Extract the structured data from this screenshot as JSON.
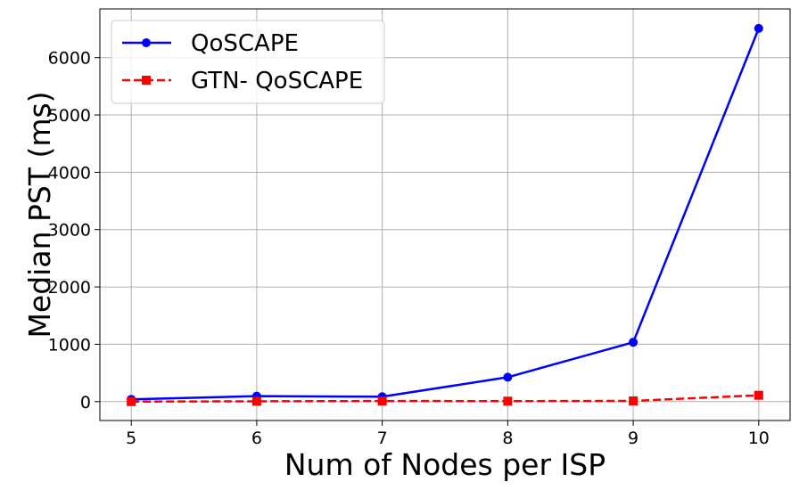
{
  "chart_data": {
    "type": "line",
    "title": "",
    "xlabel": "Num of Nodes per ISP",
    "ylabel": "Median PST (ms)",
    "x": [
      5,
      6,
      7,
      8,
      9,
      10
    ],
    "xlim": [
      4.75,
      10.25
    ],
    "ylim": [
      -330,
      6850
    ],
    "xticks": [
      5,
      6,
      7,
      8,
      9,
      10
    ],
    "yticks": [
      0,
      1000,
      2000,
      3000,
      4000,
      5000,
      6000
    ],
    "grid": true,
    "legend_position": "top-left",
    "series": [
      {
        "name": "QoSCAPE",
        "values": [
          40,
          95,
          85,
          425,
          1035,
          6510
        ],
        "color": "#0000ff",
        "marker": "circle",
        "line_style": "solid"
      },
      {
        "name": "GTN- QoSCAPE",
        "values": [
          0,
          5,
          10,
          8,
          12,
          110
        ],
        "color": "#ff0000",
        "marker": "square",
        "line_style": "dashed"
      }
    ]
  }
}
